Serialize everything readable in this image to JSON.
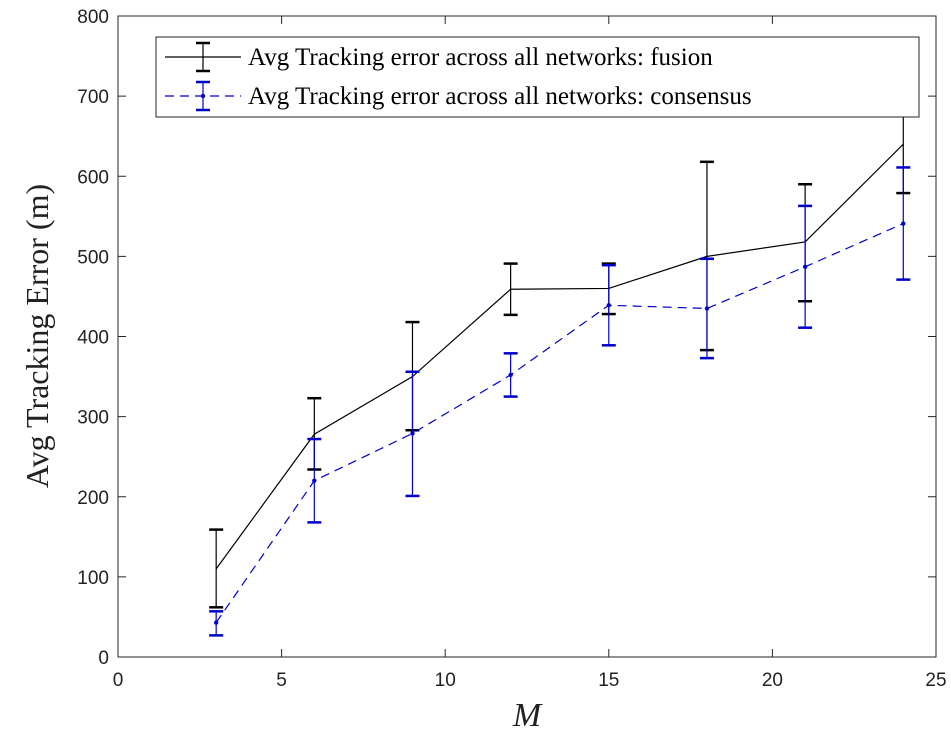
{
  "chart_data": {
    "type": "line",
    "xlabel": "M",
    "ylabel": "Avg Tracking Error (m)",
    "xlim": [
      0,
      25
    ],
    "ylim": [
      0,
      800
    ],
    "xticks": [
      0,
      5,
      10,
      15,
      20,
      25
    ],
    "yticks": [
      0,
      100,
      200,
      300,
      400,
      500,
      600,
      700,
      800
    ],
    "grid": false,
    "legend_position": "top-right",
    "x": [
      3,
      6,
      9,
      12,
      15,
      18,
      21,
      24
    ],
    "series": [
      {
        "name": "Avg Tracking error across all networks: fusion",
        "color": "#000000",
        "line_style": "solid",
        "marker": "none",
        "values": [
          110,
          278,
          350,
          459,
          460,
          500,
          518,
          640
        ],
        "error_low": [
          62,
          234,
          283,
          427,
          428,
          383,
          444,
          579
        ],
        "error_high": [
          159,
          323,
          418,
          491,
          491,
          618,
          590,
          700
        ]
      },
      {
        "name": "Avg Tracking error across all networks: consensus",
        "color": "#0000cc",
        "line_style": "dashed",
        "marker": "dot",
        "values": [
          43,
          220,
          279,
          352,
          439,
          435,
          487,
          541
        ],
        "error_low": [
          27,
          168,
          201,
          325,
          389,
          373,
          411,
          471
        ],
        "error_high": [
          57,
          272,
          356,
          379,
          489,
          497,
          563,
          611
        ]
      }
    ]
  }
}
